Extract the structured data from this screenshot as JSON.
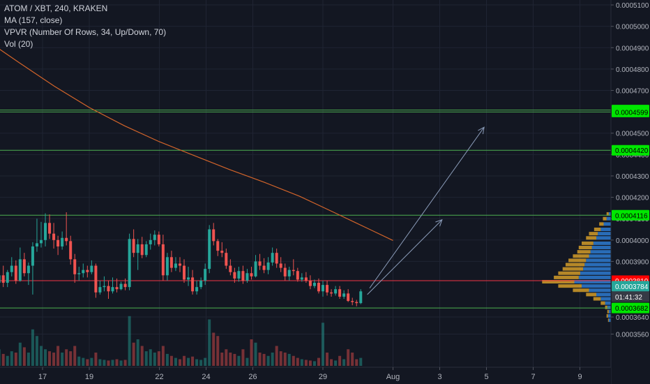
{
  "legend": {
    "symbol": "ATOM / XBT, 240, KRAKEN",
    "ma": "MA (157, close)",
    "vpvr": "VPVR (Number Of Rows, 34, Up/Down, 70)",
    "vol": "Vol (20)"
  },
  "colors": {
    "background": "#131722",
    "grid": "#1f2433",
    "text": "#b2b5be",
    "up": "#26a69a",
    "down": "#ef5350",
    "ma_line": "#d2642a",
    "hline_green": "#4caf50",
    "hline_red": "#f23645",
    "label_green": "#00e600",
    "label_red": "#ff0000",
    "label_teal": "#26a69a",
    "label_dark": "#363a45",
    "arrow": "#8a9bb8",
    "vpvr_up": "#2e7bd1",
    "vpvr_down": "#e0a52a"
  },
  "chart_data": {
    "type": "candlestick",
    "title": "ATOM / XBT, 240, KRAKEN",
    "xlabel": "",
    "ylabel": "",
    "ylim": [
      0.000348,
      0.000511
    ],
    "grid": true,
    "y_ticks": [
      "0.0003560",
      "0.0003640",
      "0.0003900",
      "0.0004000",
      "0.0004100",
      "0.0004200",
      "0.0004300",
      "0.0004400",
      "0.0004500",
      "0.0004700",
      "0.0004800",
      "0.0004900",
      "0.0005000",
      "0.0005100"
    ],
    "x_ticks": [
      {
        "label": "17",
        "day": 17
      },
      {
        "label": "19",
        "day": 19
      },
      {
        "label": "22",
        "day": 22
      },
      {
        "label": "24",
        "day": 24
      },
      {
        "label": "26",
        "day": 26
      },
      {
        "label": "29",
        "day": 29
      },
      {
        "label": "Aug",
        "day": 32
      },
      {
        "label": "3",
        "day": 34
      },
      {
        "label": "5",
        "day": 36
      },
      {
        "label": "7",
        "day": 38
      },
      {
        "label": "9",
        "day": 40
      }
    ],
    "price_labels": [
      {
        "text": "0.0004608",
        "value": 0.0004608,
        "kind": "green"
      },
      {
        "text": "0.0004599",
        "value": 0.0004599,
        "kind": "green"
      },
      {
        "text": "0.0004420",
        "value": 0.000442,
        "kind": "green"
      },
      {
        "text": "0.0004116",
        "value": 0.0004116,
        "kind": "green"
      },
      {
        "text": "0.0003810",
        "value": 0.000381,
        "kind": "red"
      },
      {
        "text": "0.0003784",
        "value": 0.0003784,
        "kind": "teal"
      },
      {
        "text": "01:41:32",
        "value": 0.0003735,
        "kind": "dark"
      },
      {
        "text": "0.0003682",
        "value": 0.0003682,
        "kind": "green"
      }
    ],
    "horizontal_lines": [
      {
        "value": 0.0004608,
        "color": "green"
      },
      {
        "value": 0.0004599,
        "color": "green"
      },
      {
        "value": 0.000442,
        "color": "green"
      },
      {
        "value": 0.0004116,
        "color": "green"
      },
      {
        "value": 0.000381,
        "color": "red"
      },
      {
        "value": 0.0003682,
        "color": "green"
      }
    ],
    "arrows": [
      {
        "from_day": 30.9,
        "from_value": 0.0003745,
        "to_day": 34.1,
        "to_value": 0.0004095
      },
      {
        "from_day": 31.0,
        "from_value": 0.0003775,
        "to_day": 35.9,
        "to_value": 0.0004528
      }
    ],
    "ma_series": {
      "name": "MA (157, close)",
      "points": [
        [
          14.6,
          0.0004935
        ],
        [
          16.0,
          0.000483
        ],
        [
          17.5,
          0.000472
        ],
        [
          19.0,
          0.000462
        ],
        [
          20.5,
          0.0004535
        ],
        [
          22.0,
          0.000446
        ],
        [
          23.5,
          0.0004395
        ],
        [
          25.0,
          0.000433
        ],
        [
          26.5,
          0.000427
        ],
        [
          28.0,
          0.0004205
        ],
        [
          29.5,
          0.0004128
        ],
        [
          31.0,
          0.000405
        ],
        [
          32.0,
          0.0003998
        ]
      ]
    },
    "candles": [
      {
        "t": 14.6,
        "o": 0.0003648,
        "h": 0.0003715,
        "l": 0.0003612,
        "c": 0.0003695,
        "v": 45
      },
      {
        "t": 14.78,
        "o": 0.0003695,
        "h": 0.0003835,
        "l": 0.000367,
        "c": 0.000382,
        "v": 80
      },
      {
        "t": 14.96,
        "o": 0.000382,
        "h": 0.0003865,
        "l": 0.000377,
        "c": 0.00038,
        "v": 40
      },
      {
        "t": 15.14,
        "o": 0.00038,
        "h": 0.00041,
        "l": 0.000379,
        "c": 0.0003835,
        "v": 25
      },
      {
        "t": 15.32,
        "o": 0.0003835,
        "h": 0.000388,
        "l": 0.000378,
        "c": 0.00038,
        "v": 18
      },
      {
        "t": 15.5,
        "o": 0.00038,
        "h": 0.000386,
        "l": 0.000378,
        "c": 0.000385,
        "v": 15
      },
      {
        "t": 15.68,
        "o": 0.000385,
        "h": 0.000392,
        "l": 0.000383,
        "c": 0.000388,
        "v": 22
      },
      {
        "t": 15.86,
        "o": 0.000388,
        "h": 0.0003905,
        "l": 0.0003795,
        "c": 0.000381,
        "v": 20
      },
      {
        "t": 16.04,
        "o": 0.000381,
        "h": 0.0003965,
        "l": 0.0003805,
        "c": 0.000391,
        "v": 35
      },
      {
        "t": 16.22,
        "o": 0.000391,
        "h": 0.000394,
        "l": 0.000383,
        "c": 0.0003845,
        "v": 28
      },
      {
        "t": 16.4,
        "o": 0.0003845,
        "h": 0.0003895,
        "l": 0.000379,
        "c": 0.000388,
        "v": 20
      },
      {
        "t": 16.58,
        "o": 0.000388,
        "h": 0.000399,
        "l": 0.0003745,
        "c": 0.000397,
        "v": 55
      },
      {
        "t": 16.76,
        "o": 0.000397,
        "h": 0.00041,
        "l": 0.0003945,
        "c": 0.0003985,
        "v": 45
      },
      {
        "t": 16.94,
        "o": 0.0003985,
        "h": 0.0004085,
        "l": 0.0003965,
        "c": 0.0004,
        "v": 30
      },
      {
        "t": 17.12,
        "o": 0.0004,
        "h": 0.0004125,
        "l": 0.000397,
        "c": 0.000408,
        "v": 25
      },
      {
        "t": 17.3,
        "o": 0.000408,
        "h": 0.000412,
        "l": 0.0004005,
        "c": 0.000403,
        "v": 22
      },
      {
        "t": 17.48,
        "o": 0.000403,
        "h": 0.000408,
        "l": 0.000396,
        "c": 0.0004,
        "v": 20
      },
      {
        "t": 17.66,
        "o": 0.0004,
        "h": 0.000402,
        "l": 0.000393,
        "c": 0.000397,
        "v": 30
      },
      {
        "t": 17.84,
        "o": 0.000397,
        "h": 0.000404,
        "l": 0.0003955,
        "c": 0.000401,
        "v": 20
      },
      {
        "t": 18.02,
        "o": 0.000401,
        "h": 0.000413,
        "l": 0.0003975,
        "c": 0.0003995,
        "v": 25
      },
      {
        "t": 18.2,
        "o": 0.0003995,
        "h": 0.000402,
        "l": 0.0003885,
        "c": 0.000391,
        "v": 22
      },
      {
        "t": 18.38,
        "o": 0.000391,
        "h": 0.0003935,
        "l": 0.00038,
        "c": 0.000384,
        "v": 30
      },
      {
        "t": 18.56,
        "o": 0.000384,
        "h": 0.0003875,
        "l": 0.000381,
        "c": 0.0003845,
        "v": 14
      },
      {
        "t": 18.74,
        "o": 0.0003845,
        "h": 0.000389,
        "l": 0.0003825,
        "c": 0.000386,
        "v": 12
      },
      {
        "t": 18.92,
        "o": 0.000386,
        "h": 0.000388,
        "l": 0.0003825,
        "c": 0.000385,
        "v": 10
      },
      {
        "t": 19.1,
        "o": 0.000385,
        "h": 0.0003905,
        "l": 0.000384,
        "c": 0.000388,
        "v": 12
      },
      {
        "t": 19.28,
        "o": 0.000388,
        "h": 0.000389,
        "l": 0.000373,
        "c": 0.0003755,
        "v": 20
      },
      {
        "t": 19.46,
        "o": 0.0003755,
        "h": 0.000381,
        "l": 0.0003745,
        "c": 0.000378,
        "v": 10
      },
      {
        "t": 19.64,
        "o": 0.000378,
        "h": 0.000383,
        "l": 0.000376,
        "c": 0.0003785,
        "v": 9
      },
      {
        "t": 19.82,
        "o": 0.0003785,
        "h": 0.000381,
        "l": 0.0003725,
        "c": 0.000376,
        "v": 8
      },
      {
        "t": 20.0,
        "o": 0.000376,
        "h": 0.0003825,
        "l": 0.000375,
        "c": 0.000378,
        "v": 9
      },
      {
        "t": 20.18,
        "o": 0.000378,
        "h": 0.000382,
        "l": 0.0003755,
        "c": 0.000377,
        "v": 10
      },
      {
        "t": 20.36,
        "o": 0.000377,
        "h": 0.0003805,
        "l": 0.0003765,
        "c": 0.0003795,
        "v": 8
      },
      {
        "t": 20.54,
        "o": 0.0003795,
        "h": 0.000382,
        "l": 0.0003765,
        "c": 0.000378,
        "v": 9
      },
      {
        "t": 20.72,
        "o": 0.000378,
        "h": 0.000403,
        "l": 0.0003765,
        "c": 0.0004005,
        "v": 75
      },
      {
        "t": 20.9,
        "o": 0.0004005,
        "h": 0.000405,
        "l": 0.000392,
        "c": 0.000394,
        "v": 35
      },
      {
        "t": 21.08,
        "o": 0.000394,
        "h": 0.0004005,
        "l": 0.000386,
        "c": 0.000398,
        "v": 40
      },
      {
        "t": 21.26,
        "o": 0.000398,
        "h": 0.0004015,
        "l": 0.0003915,
        "c": 0.000393,
        "v": 30
      },
      {
        "t": 21.44,
        "o": 0.000393,
        "h": 0.0003995,
        "l": 0.000392,
        "c": 0.000398,
        "v": 22
      },
      {
        "t": 21.62,
        "o": 0.000398,
        "h": 0.000403,
        "l": 0.0003955,
        "c": 0.0004,
        "v": 25
      },
      {
        "t": 21.8,
        "o": 0.0004,
        "h": 0.0004045,
        "l": 0.0003975,
        "c": 0.0004025,
        "v": 20
      },
      {
        "t": 21.98,
        "o": 0.0004025,
        "h": 0.000404,
        "l": 0.000397,
        "c": 0.000398,
        "v": 22
      },
      {
        "t": 22.16,
        "o": 0.000398,
        "h": 0.0004025,
        "l": 0.000381,
        "c": 0.0003835,
        "v": 30
      },
      {
        "t": 22.34,
        "o": 0.0003835,
        "h": 0.000394,
        "l": 0.000381,
        "c": 0.000392,
        "v": 18
      },
      {
        "t": 22.52,
        "o": 0.000392,
        "h": 0.000395,
        "l": 0.000385,
        "c": 0.000387,
        "v": 15
      },
      {
        "t": 22.7,
        "o": 0.000387,
        "h": 0.000392,
        "l": 0.0003855,
        "c": 0.000389,
        "v": 12
      },
      {
        "t": 22.88,
        "o": 0.000389,
        "h": 0.000392,
        "l": 0.000385,
        "c": 0.000388,
        "v": 10
      },
      {
        "t": 23.06,
        "o": 0.000388,
        "h": 0.000391,
        "l": 0.00038,
        "c": 0.0003815,
        "v": 15
      },
      {
        "t": 23.24,
        "o": 0.0003815,
        "h": 0.0003875,
        "l": 0.0003785,
        "c": 0.0003825,
        "v": 12
      },
      {
        "t": 23.42,
        "o": 0.0003825,
        "h": 0.000386,
        "l": 0.0003745,
        "c": 0.000376,
        "v": 14
      },
      {
        "t": 23.6,
        "o": 0.000376,
        "h": 0.000381,
        "l": 0.0003745,
        "c": 0.000378,
        "v": 10
      },
      {
        "t": 23.78,
        "o": 0.000378,
        "h": 0.0003825,
        "l": 0.000377,
        "c": 0.000381,
        "v": 9
      },
      {
        "t": 23.96,
        "o": 0.000381,
        "h": 0.000389,
        "l": 0.000379,
        "c": 0.0003865,
        "v": 12
      },
      {
        "t": 24.14,
        "o": 0.0003865,
        "h": 0.000407,
        "l": 0.0003845,
        "c": 0.000405,
        "v": 70
      },
      {
        "t": 24.32,
        "o": 0.000405,
        "h": 0.000408,
        "l": 0.0003975,
        "c": 0.0003995,
        "v": 50
      },
      {
        "t": 24.5,
        "o": 0.0003995,
        "h": 0.0004005,
        "l": 0.0003925,
        "c": 0.000395,
        "v": 45
      },
      {
        "t": 24.68,
        "o": 0.000395,
        "h": 0.000399,
        "l": 0.000392,
        "c": 0.000394,
        "v": 20
      },
      {
        "t": 24.86,
        "o": 0.000394,
        "h": 0.000396,
        "l": 0.0003865,
        "c": 0.000388,
        "v": 25
      },
      {
        "t": 25.04,
        "o": 0.000388,
        "h": 0.000391,
        "l": 0.0003835,
        "c": 0.000385,
        "v": 20
      },
      {
        "t": 25.22,
        "o": 0.000385,
        "h": 0.000387,
        "l": 0.00038,
        "c": 0.000382,
        "v": 18
      },
      {
        "t": 25.4,
        "o": 0.000382,
        "h": 0.0003875,
        "l": 0.0003805,
        "c": 0.0003855,
        "v": 15
      },
      {
        "t": 25.58,
        "o": 0.0003855,
        "h": 0.000388,
        "l": 0.0003795,
        "c": 0.000381,
        "v": 25
      },
      {
        "t": 25.76,
        "o": 0.000381,
        "h": 0.0003865,
        "l": 0.00038,
        "c": 0.0003845,
        "v": 12
      },
      {
        "t": 25.94,
        "o": 0.0003845,
        "h": 0.0003875,
        "l": 0.0003815,
        "c": 0.000383,
        "v": 40
      },
      {
        "t": 26.12,
        "o": 0.000383,
        "h": 0.000393,
        "l": 0.0003825,
        "c": 0.00039,
        "v": 35
      },
      {
        "t": 26.3,
        "o": 0.00039,
        "h": 0.0003935,
        "l": 0.000386,
        "c": 0.000388,
        "v": 20
      },
      {
        "t": 26.48,
        "o": 0.000388,
        "h": 0.0003915,
        "l": 0.0003845,
        "c": 0.000386,
        "v": 18
      },
      {
        "t": 26.66,
        "o": 0.000386,
        "h": 0.000392,
        "l": 0.000384,
        "c": 0.0003895,
        "v": 15
      },
      {
        "t": 26.84,
        "o": 0.0003895,
        "h": 0.0003965,
        "l": 0.000388,
        "c": 0.000394,
        "v": 20
      },
      {
        "t": 27.02,
        "o": 0.000394,
        "h": 0.000396,
        "l": 0.000387,
        "c": 0.000389,
        "v": 30
      },
      {
        "t": 27.2,
        "o": 0.000389,
        "h": 0.000392,
        "l": 0.000385,
        "c": 0.000387,
        "v": 22
      },
      {
        "t": 27.38,
        "o": 0.000387,
        "h": 0.000389,
        "l": 0.000381,
        "c": 0.000383,
        "v": 20
      },
      {
        "t": 27.56,
        "o": 0.000383,
        "h": 0.0003875,
        "l": 0.000381,
        "c": 0.000386,
        "v": 18
      },
      {
        "t": 27.74,
        "o": 0.000386,
        "h": 0.000391,
        "l": 0.0003835,
        "c": 0.0003855,
        "v": 15
      },
      {
        "t": 27.92,
        "o": 0.0003855,
        "h": 0.000387,
        "l": 0.0003805,
        "c": 0.0003815,
        "v": 12
      },
      {
        "t": 28.1,
        "o": 0.0003815,
        "h": 0.0003845,
        "l": 0.0003805,
        "c": 0.0003825,
        "v": 10
      },
      {
        "t": 28.28,
        "o": 0.0003825,
        "h": 0.000385,
        "l": 0.00038,
        "c": 0.000381,
        "v": 9
      },
      {
        "t": 28.46,
        "o": 0.000381,
        "h": 0.0003835,
        "l": 0.000377,
        "c": 0.0003785,
        "v": 8
      },
      {
        "t": 28.64,
        "o": 0.0003785,
        "h": 0.0003815,
        "l": 0.0003775,
        "c": 0.00038,
        "v": 7
      },
      {
        "t": 28.82,
        "o": 0.00038,
        "h": 0.000382,
        "l": 0.000375,
        "c": 0.000376,
        "v": 12
      },
      {
        "t": 29.0,
        "o": 0.000376,
        "h": 0.000381,
        "l": 0.0003735,
        "c": 0.000379,
        "v": 65
      },
      {
        "t": 29.18,
        "o": 0.000379,
        "h": 0.000381,
        "l": 0.000374,
        "c": 0.0003755,
        "v": 20
      },
      {
        "t": 29.36,
        "o": 0.0003755,
        "h": 0.000377,
        "l": 0.0003735,
        "c": 0.000375,
        "v": 10
      },
      {
        "t": 29.54,
        "o": 0.000375,
        "h": 0.0003785,
        "l": 0.000374,
        "c": 0.000377,
        "v": 8
      },
      {
        "t": 29.72,
        "o": 0.000377,
        "h": 0.0003785,
        "l": 0.0003725,
        "c": 0.0003735,
        "v": 15
      },
      {
        "t": 29.9,
        "o": 0.0003735,
        "h": 0.0003765,
        "l": 0.0003725,
        "c": 0.000375,
        "v": 10
      },
      {
        "t": 30.08,
        "o": 0.000375,
        "h": 0.000377,
        "l": 0.000371,
        "c": 0.0003715,
        "v": 25
      },
      {
        "t": 30.26,
        "o": 0.0003715,
        "h": 0.000373,
        "l": 0.0003695,
        "c": 0.000371,
        "v": 20
      },
      {
        "t": 30.44,
        "o": 0.000371,
        "h": 0.000372,
        "l": 0.000369,
        "c": 0.0003705,
        "v": 10
      },
      {
        "t": 30.62,
        "o": 0.0003705,
        "h": 0.000377,
        "l": 0.00037,
        "c": 0.000376,
        "v": 12
      }
    ],
    "vpvr_rows": [
      {
        "price": 0.0004122,
        "up": 3,
        "down": 3
      },
      {
        "price": 0.00041,
        "up": 6,
        "down": 5
      },
      {
        "price": 0.0004075,
        "up": 10,
        "down": 6
      },
      {
        "price": 0.000405,
        "up": 14,
        "down": 9
      },
      {
        "price": 0.000403,
        "up": 18,
        "down": 12
      },
      {
        "price": 0.000401,
        "up": 20,
        "down": 14
      },
      {
        "price": 0.0003985,
        "up": 24,
        "down": 16
      },
      {
        "price": 0.0003965,
        "up": 26,
        "down": 18
      },
      {
        "price": 0.0003945,
        "up": 28,
        "down": 18
      },
      {
        "price": 0.0003925,
        "up": 30,
        "down": 22
      },
      {
        "price": 0.0003905,
        "up": 34,
        "down": 24
      },
      {
        "price": 0.0003885,
        "up": 36,
        "down": 26
      },
      {
        "price": 0.0003865,
        "up": 38,
        "down": 28
      },
      {
        "price": 0.0003845,
        "up": 42,
        "down": 30
      },
      {
        "price": 0.0003825,
        "up": 44,
        "down": 34
      },
      {
        "price": 0.0003805,
        "up": 50,
        "down": 44
      },
      {
        "price": 0.0003785,
        "up": 40,
        "down": 32
      },
      {
        "price": 0.0003765,
        "up": 30,
        "down": 22
      },
      {
        "price": 0.0003745,
        "up": 20,
        "down": 14
      },
      {
        "price": 0.0003725,
        "up": 14,
        "down": 10
      },
      {
        "price": 0.0003705,
        "up": 8,
        "down": 6
      },
      {
        "price": 0.0003685,
        "up": 5,
        "down": 3
      },
      {
        "price": 0.0003665,
        "up": 3,
        "down": 2
      },
      {
        "price": 0.0003645,
        "up": 4,
        "down": 2
      },
      {
        "price": 0.0003625,
        "up": 3,
        "down": 1
      }
    ]
  }
}
